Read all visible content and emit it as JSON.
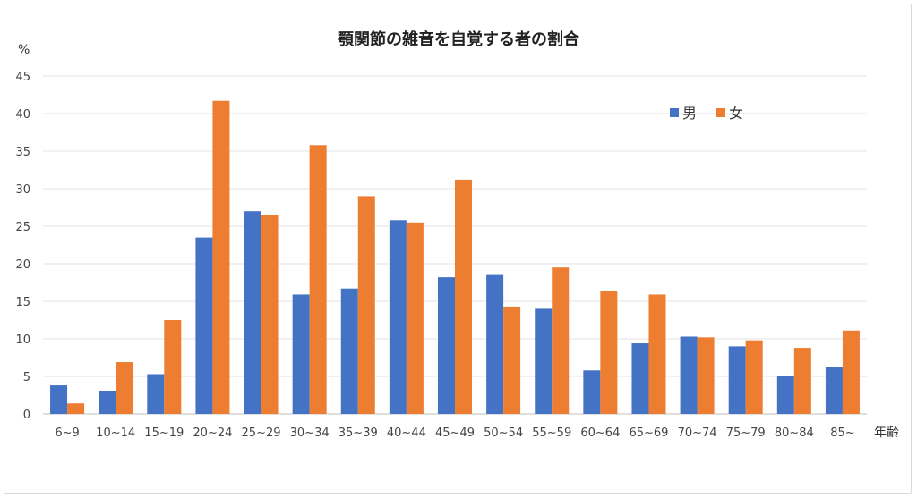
{
  "chart_data": {
    "type": "bar",
    "title": "顎関節の雑音を自覚する者の割合",
    "ylabel": "%",
    "xlabel": "年齢",
    "ylim": [
      0,
      45
    ],
    "yticks": [
      0,
      5,
      10,
      15,
      20,
      25,
      30,
      35,
      40,
      45
    ],
    "grid": true,
    "legend_position": "top-right",
    "categories": [
      "6~9",
      "10~14",
      "15~19",
      "20~24",
      "25~29",
      "30~34",
      "35~39",
      "40~44",
      "45~49",
      "50~54",
      "55~59",
      "60~64",
      "65~69",
      "70~74",
      "75~79",
      "80~84",
      "85~"
    ],
    "series": [
      {
        "name": "男",
        "color": "#4472C4",
        "values": [
          3.8,
          3.1,
          5.3,
          23.5,
          27.0,
          15.9,
          16.7,
          25.8,
          18.2,
          18.5,
          14.0,
          5.8,
          9.4,
          10.3,
          9.0,
          5.0,
          6.3
        ]
      },
      {
        "name": "女",
        "color": "#ED7D31",
        "values": [
          1.4,
          6.9,
          12.5,
          41.7,
          26.5,
          35.8,
          29.0,
          25.5,
          31.2,
          14.3,
          19.5,
          16.4,
          15.9,
          10.2,
          9.8,
          8.8,
          11.1
        ]
      }
    ]
  }
}
